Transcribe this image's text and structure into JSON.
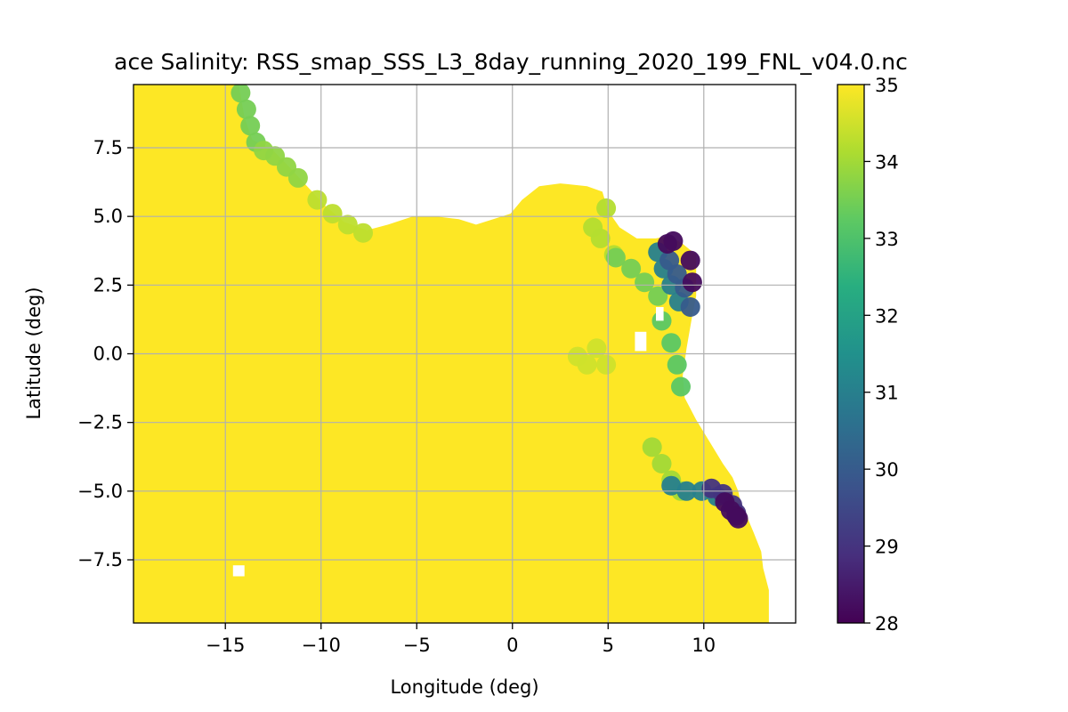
{
  "chart_data": {
    "type": "heatmap",
    "title": "ace Salinity: RSS_smap_SSS_L3_8day_running_2020_199_FNL_v04.0.nc",
    "xlabel": "Longitude (deg)",
    "ylabel": "Latitude (deg)",
    "xlim": [
      -19.8,
      14.8
    ],
    "ylim": [
      -9.8,
      9.8
    ],
    "xticks": [
      -15,
      -10,
      -5,
      0,
      5,
      10
    ],
    "xtick_labels": [
      "−15",
      "−10",
      "−5",
      "0",
      "5",
      "10"
    ],
    "yticks": [
      7.5,
      5.0,
      2.5,
      0.0,
      -2.5,
      -5.0,
      -7.5
    ],
    "ytick_labels": [
      "7.5",
      "5.0",
      "2.5",
      "0.0",
      "−2.5",
      "−5.0",
      "−7.5"
    ],
    "grid": true,
    "colormap": "viridis",
    "colorbar": {
      "range": [
        28,
        35
      ],
      "ticks": [
        35,
        34,
        33,
        32,
        31,
        30,
        29,
        28
      ],
      "tick_labels": [
        "35",
        "34",
        "33",
        "32",
        "31",
        "30",
        "29",
        "28"
      ]
    },
    "background_value": 35,
    "coastline": [
      [
        -14.3,
        9.8
      ],
      [
        -14.0,
        8.6
      ],
      [
        -13.6,
        7.8
      ],
      [
        -12.5,
        7.4
      ],
      [
        -11.8,
        6.9
      ],
      [
        -10.6,
        6.0
      ],
      [
        -9.8,
        5.4
      ],
      [
        -8.8,
        4.8
      ],
      [
        -7.6,
        4.5
      ],
      [
        -6.5,
        4.7
      ],
      [
        -5.2,
        5.0
      ],
      [
        -4.0,
        5.0
      ],
      [
        -2.8,
        4.9
      ],
      [
        -1.9,
        4.7
      ],
      [
        -1.0,
        4.9
      ],
      [
        -0.1,
        5.1
      ],
      [
        0.5,
        5.6
      ],
      [
        1.4,
        6.1
      ],
      [
        2.5,
        6.2
      ],
      [
        3.9,
        6.1
      ],
      [
        4.7,
        5.9
      ],
      [
        5.0,
        5.2
      ],
      [
        5.6,
        4.6
      ],
      [
        6.5,
        4.2
      ],
      [
        7.5,
        4.2
      ],
      [
        8.2,
        4.3
      ],
      [
        8.9,
        4.0
      ],
      [
        9.6,
        3.6
      ],
      [
        9.6,
        2.1
      ],
      [
        9.4,
        1.4
      ],
      [
        9.1,
        0.2
      ],
      [
        8.9,
        -0.8
      ],
      [
        9.0,
        -1.6
      ],
      [
        9.6,
        -2.4
      ],
      [
        10.3,
        -3.2
      ],
      [
        11.0,
        -4.0
      ],
      [
        11.5,
        -4.5
      ],
      [
        11.8,
        -5.0
      ],
      [
        12.0,
        -5.7
      ],
      [
        12.3,
        -6.0
      ],
      [
        12.6,
        -6.5
      ],
      [
        13.0,
        -7.2
      ],
      [
        13.1,
        -7.8
      ],
      [
        13.4,
        -8.6
      ],
      [
        13.4,
        -9.8
      ]
    ],
    "fresh_zones": [
      {
        "lon": [
          -14.2,
          -13.9,
          -13.7,
          -13.4
        ],
        "lat": [
          9.5,
          8.9,
          8.3,
          7.7
        ],
        "value": 33.5
      },
      {
        "lon": [
          -13.0,
          -12.4,
          -11.8,
          -11.2
        ],
        "lat": [
          7.4,
          7.2,
          6.8,
          6.4
        ],
        "value": 33.8
      },
      {
        "lon": [
          -10.2,
          -9.4,
          -8.6,
          -7.8
        ],
        "lat": [
          5.6,
          5.1,
          4.7,
          4.4
        ],
        "value": 34.3
      },
      {
        "lon": [
          4.2,
          4.6,
          4.9,
          5.3
        ],
        "lat": [
          4.6,
          4.2,
          5.3,
          3.6
        ],
        "value": 34.2
      },
      {
        "lon": [
          5.4,
          6.2,
          6.9,
          7.6
        ],
        "lat": [
          3.5,
          3.1,
          2.6,
          2.1
        ],
        "value": 33.5
      },
      {
        "lon": [
          7.6,
          7.9,
          8.3,
          8.7
        ],
        "lat": [
          3.7,
          3.1,
          2.5,
          1.9
        ],
        "value": 31.0
      },
      {
        "lon": [
          8.2,
          8.6,
          9.0,
          9.3
        ],
        "lat": [
          3.4,
          2.9,
          2.4,
          1.7
        ],
        "value": 30.0
      },
      {
        "lon": [
          8.1,
          8.4,
          9.3,
          9.4
        ],
        "lat": [
          4.0,
          4.1,
          3.4,
          2.6
        ],
        "value": 28.2
      },
      {
        "lon": [
          7.8,
          8.3,
          8.6,
          8.8
        ],
        "lat": [
          1.2,
          0.4,
          -0.4,
          -1.2
        ],
        "value": 33.2
      },
      {
        "lon": [
          3.4,
          3.9,
          4.4,
          4.9
        ],
        "lat": [
          -0.1,
          -0.4,
          0.2,
          -0.4
        ],
        "value": 34.5
      },
      {
        "lon": [
          7.3,
          7.8,
          8.3,
          8.8
        ],
        "lat": [
          -3.4,
          -4.0,
          -4.6,
          -5.0
        ],
        "value": 34.0
      },
      {
        "lon": [
          8.3,
          9.1,
          9.9,
          10.7
        ],
        "lat": [
          -4.8,
          -5.0,
          -5.0,
          -5.2
        ],
        "value": 31.0
      },
      {
        "lon": [
          10.4,
          11.0,
          11.5,
          11.7
        ],
        "lat": [
          -4.9,
          -5.1,
          -5.5,
          -5.8
        ],
        "value": 29.0
      },
      {
        "lon": [
          11.1,
          11.4,
          11.7,
          11.8
        ],
        "lat": [
          -5.4,
          -5.7,
          -5.9,
          -6.0
        ],
        "value": 28.2
      }
    ],
    "missing_patches": [
      {
        "lon": [
          -14.6,
          -14.0
        ],
        "lat": [
          -7.7,
          -8.1
        ]
      },
      {
        "lon": [
          6.4,
          7.0
        ],
        "lat": [
          0.8,
          0.1
        ]
      },
      {
        "lon": [
          7.5,
          7.9
        ],
        "lat": [
          1.7,
          1.2
        ]
      }
    ]
  }
}
